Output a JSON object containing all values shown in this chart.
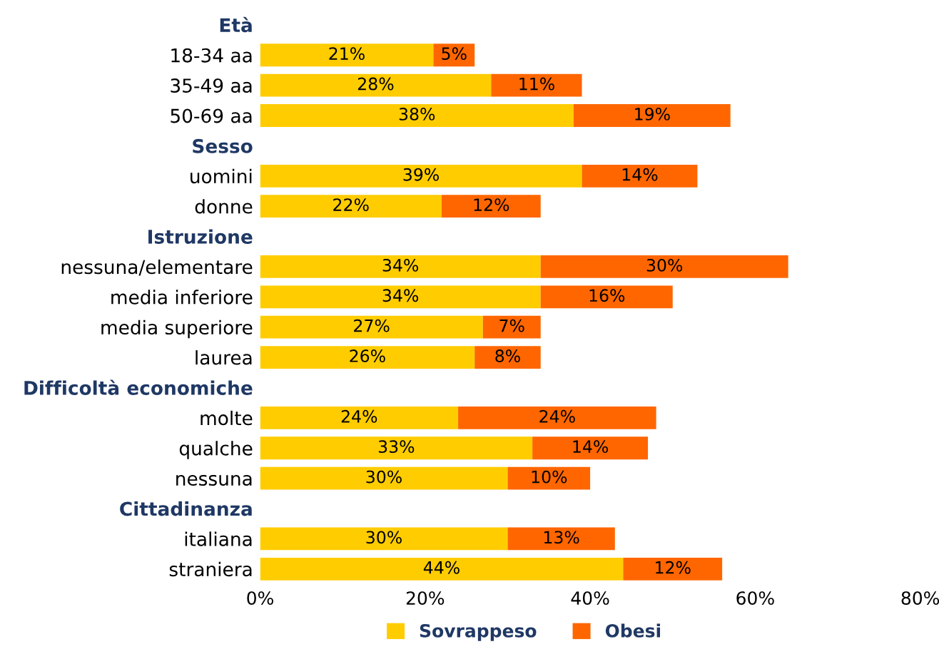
{
  "chart_data": {
    "type": "bar",
    "orientation": "horizontal",
    "stacked": true,
    "categories": [
      "Età",
      "18-34 aa",
      "35-49 aa",
      "50-69 aa",
      "Sesso",
      "uomini",
      "donne",
      "Istruzione",
      "nessuna/elementare",
      "media inferiore",
      "media superiore",
      "laurea",
      "Difficoltà economiche",
      "molte",
      "qualche",
      "nessuna",
      "Cittadinanza",
      "italiana",
      "straniera"
    ],
    "series": [
      {
        "name": "Sovrappeso",
        "color": "#ffcc00",
        "values": [
          null,
          21,
          28,
          38,
          null,
          39,
          22,
          null,
          34,
          34,
          27,
          26,
          null,
          24,
          33,
          30,
          null,
          30,
          44
        ],
        "value_labels": [
          null,
          "21%",
          "28%",
          "38%",
          null,
          "39%",
          "22%",
          null,
          "34%",
          "34%",
          "27%",
          "26%",
          null,
          "24%",
          "33%",
          "30%",
          null,
          "30%",
          "44%"
        ]
      },
      {
        "name": "Obesi",
        "color": "#ff6600",
        "values": [
          null,
          5,
          11,
          19,
          null,
          14,
          12,
          null,
          30,
          16,
          7,
          8,
          null,
          24,
          14,
          10,
          null,
          13,
          12
        ],
        "value_labels": [
          null,
          "5%",
          "11%",
          "19%",
          null,
          "14%",
          "12%",
          null,
          "30%",
          "16%",
          "7%",
          "8%",
          null,
          "24%",
          "14%",
          "10%",
          null,
          "13%",
          "12%"
        ]
      }
    ],
    "xlim": [
      0,
      80
    ],
    "xticks": [
      {
        "value": 0,
        "label": "0%"
      },
      {
        "value": 20,
        "label": "20%"
      },
      {
        "value": 40,
        "label": "40%"
      },
      {
        "value": 60,
        "label": "60%"
      },
      {
        "value": 80,
        "label": "80%"
      }
    ],
    "grid": false,
    "legend": "bottom"
  }
}
